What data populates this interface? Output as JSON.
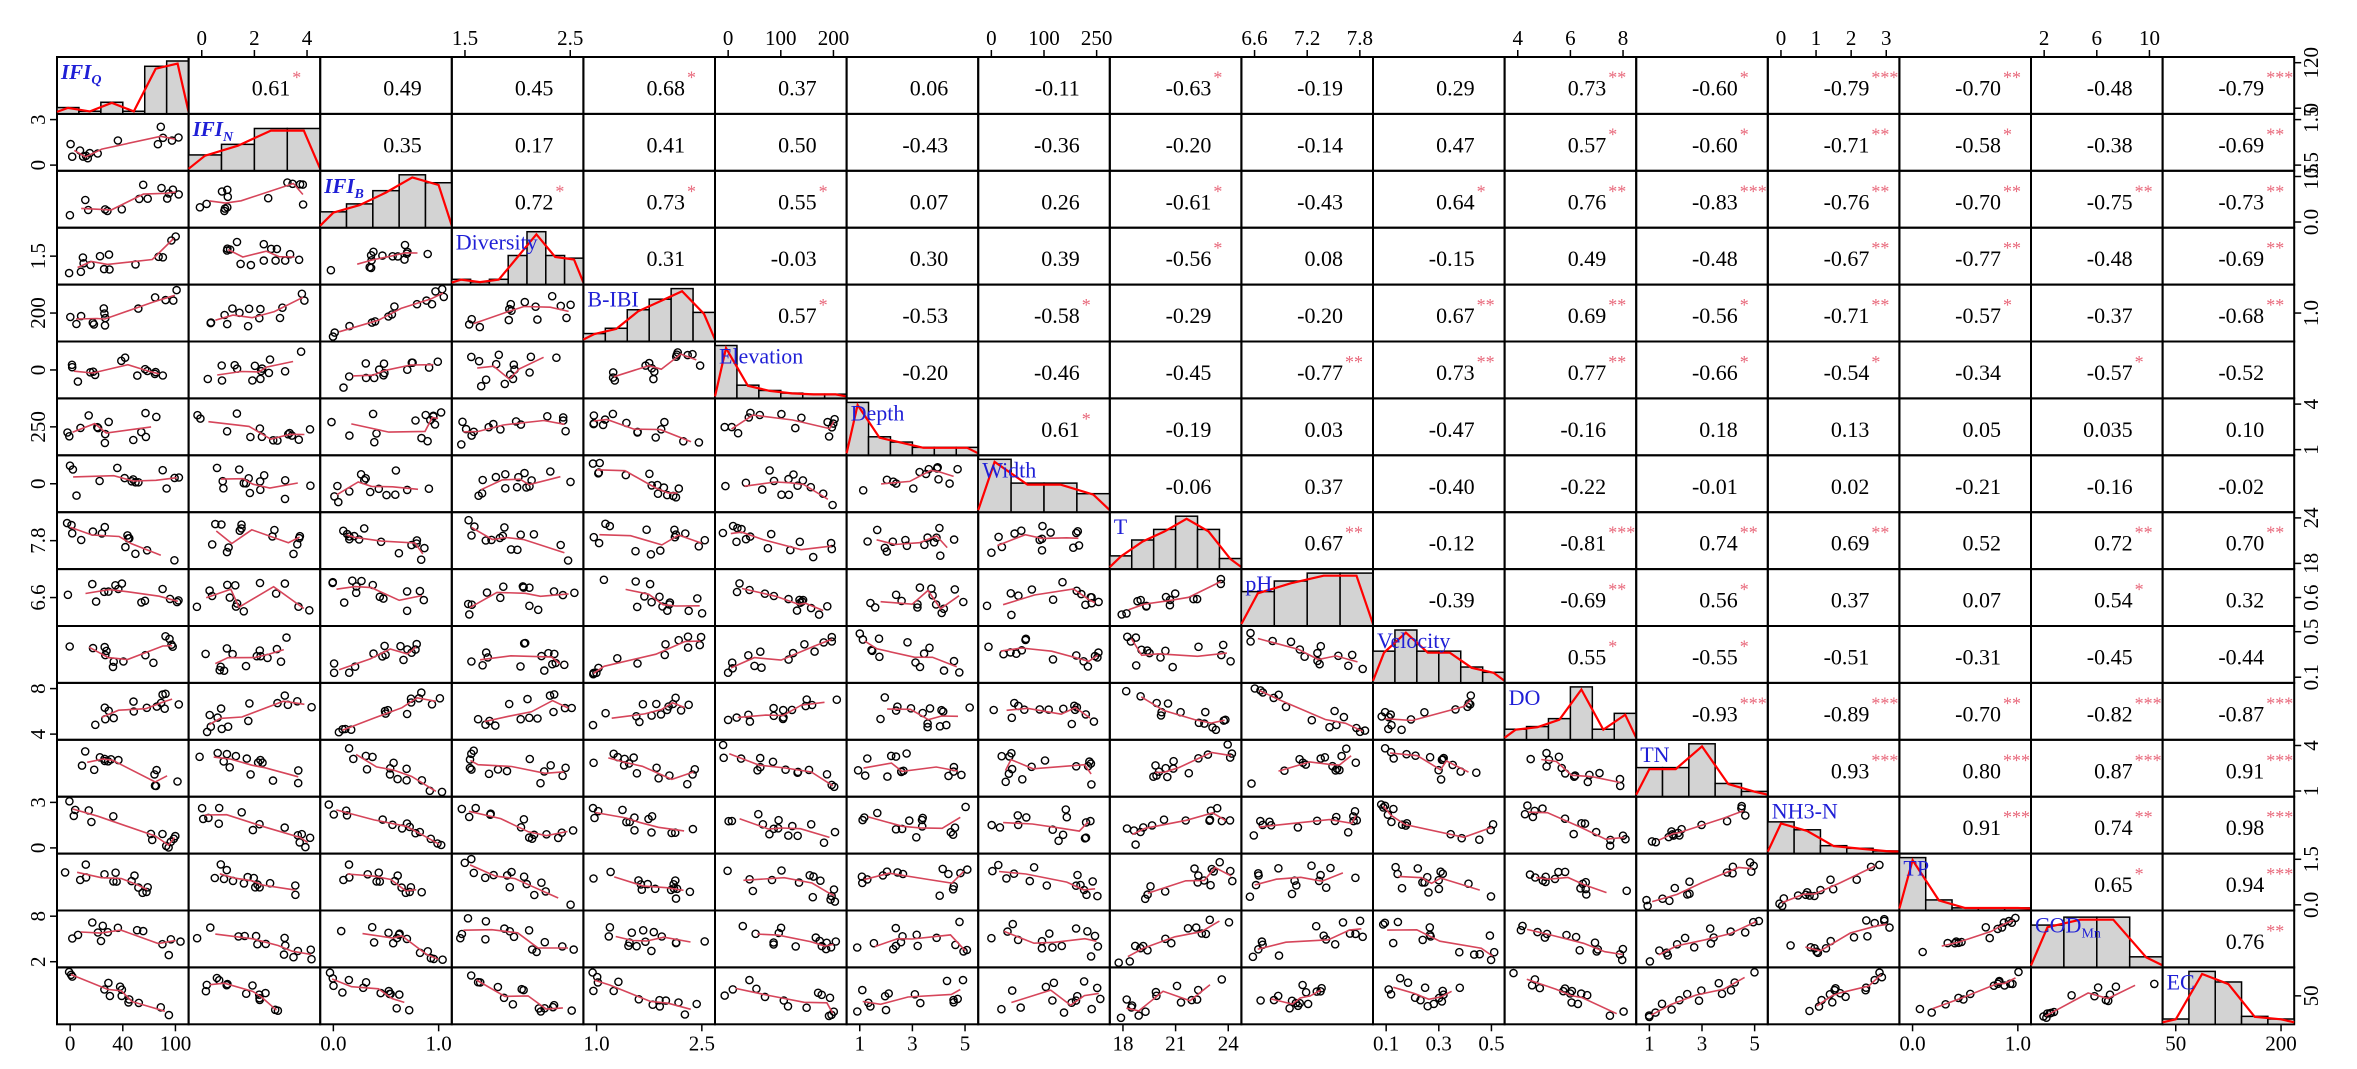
{
  "chart_data": {
    "type": "scatter",
    "variables": [
      "IFI_Q",
      "IFI_N",
      "IFI_B",
      "Diversity",
      "B-IBI",
      "Elevation",
      "Depth",
      "Width",
      "T",
      "pH",
      "Velocity",
      "DO",
      "TN",
      "NH3-N",
      "TP",
      "COD_Mn",
      "EC"
    ],
    "diagonal_labels": [
      {
        "main": "IFI",
        "sub": "Q",
        "italic": true
      },
      {
        "main": "IFI",
        "sub": "N",
        "italic": true
      },
      {
        "main": "IFI",
        "sub": "B",
        "italic": true
      },
      {
        "main": "Diversity",
        "sub": "",
        "italic": false
      },
      {
        "main": "B-IBI",
        "sub": "",
        "italic": false
      },
      {
        "main": "Elevation",
        "sub": "",
        "italic": false
      },
      {
        "main": "Depth",
        "sub": "",
        "italic": false
      },
      {
        "main": "Width",
        "sub": "",
        "italic": false
      },
      {
        "main": "T",
        "sub": "",
        "italic": false
      },
      {
        "main": "pH",
        "sub": "",
        "italic": false
      },
      {
        "main": "Velocity",
        "sub": "",
        "italic": false
      },
      {
        "main": "DO",
        "sub": "",
        "italic": false
      },
      {
        "main": "TN",
        "sub": "",
        "italic": false
      },
      {
        "main": "NH3-N",
        "sub": "",
        "italic": false
      },
      {
        "main": "TP",
        "sub": "",
        "italic": false
      },
      {
        "main": "COD",
        "sub": "Mn",
        "italic": false
      },
      {
        "main": "EC",
        "sub": "",
        "italic": false
      }
    ],
    "correlations": [
      [
        "0.61",
        "0.49",
        "0.45",
        "0.68",
        "0.37",
        "0.06",
        "-0.11",
        "-0.63",
        "-0.19",
        "0.29",
        "0.73",
        "-0.60",
        "-0.79",
        "-0.70",
        "-0.48",
        "-0.79"
      ],
      [
        "0.35",
        "0.17",
        "0.41",
        "0.50",
        "-0.43",
        "-0.36",
        "-0.20",
        "-0.14",
        "0.47",
        "0.57",
        "-0.60",
        "-0.71",
        "-0.58",
        "-0.38",
        "-0.69"
      ],
      [
        "0.72",
        "0.73",
        "0.55",
        "0.07",
        "0.26",
        "-0.61",
        "-0.43",
        "0.64",
        "0.76",
        "-0.83",
        "-0.76",
        "-0.70",
        "-0.75",
        "-0.73"
      ],
      [
        "0.31",
        "-0.03",
        "0.30",
        "0.39",
        "-0.56",
        "0.08",
        "-0.15",
        "0.49",
        "-0.48",
        "-0.67",
        "-0.77",
        "-0.48",
        "-0.69"
      ],
      [
        "0.57",
        "-0.53",
        "-0.58",
        "-0.29",
        "-0.20",
        "0.67",
        "0.69",
        "-0.56",
        "-0.71",
        "-0.57",
        "-0.37",
        "-0.68"
      ],
      [
        "-0.20",
        "-0.46",
        "-0.45",
        "-0.77",
        "0.73",
        "0.77",
        "-0.66",
        "-0.54",
        "-0.34",
        "-0.57",
        "-0.52"
      ],
      [
        "0.61",
        "-0.19",
        "0.03",
        "-0.47",
        "-0.16",
        "0.18",
        "0.13",
        "0.05",
        "0.035",
        "0.10"
      ],
      [
        "-0.06",
        "0.37",
        "-0.40",
        "-0.22",
        "-0.01",
        "0.02",
        "-0.21",
        "-0.16",
        "-0.02"
      ],
      [
        "0.67",
        "-0.12",
        "-0.81",
        "0.74",
        "0.69",
        "0.52",
        "0.72",
        "0.70"
      ],
      [
        "-0.39",
        "-0.69",
        "0.56",
        "0.37",
        "0.07",
        "0.54",
        "0.32"
      ],
      [
        "0.55",
        "-0.55",
        "-0.51",
        "-0.31",
        "-0.45",
        "-0.44"
      ],
      [
        "-0.93",
        "-0.89",
        "-0.70",
        "-0.82",
        "-0.87"
      ],
      [
        "0.93",
        "0.80",
        "0.87",
        "0.91"
      ],
      [
        "0.91",
        "0.74",
        "0.98"
      ],
      [
        "0.65",
        "0.94"
      ],
      [
        "0.76"
      ]
    ],
    "significance": [
      [
        "*",
        "",
        "",
        "*",
        "",
        "",
        "",
        "*",
        "",
        "",
        "**",
        "*",
        "***",
        "**",
        "",
        "***"
      ],
      [
        "",
        "",
        "",
        "",
        "",
        "",
        "",
        "",
        "",
        "*",
        "*",
        "**",
        "*",
        "",
        "**"
      ],
      [
        "*",
        "*",
        "*",
        "",
        "",
        "*",
        "",
        "*",
        "**",
        "***",
        "**",
        "**",
        "**",
        "**"
      ],
      [
        "",
        "",
        "",
        "",
        "*",
        "",
        "",
        "",
        "",
        "**",
        "**",
        "",
        "**"
      ],
      [
        "*",
        "",
        "*",
        "",
        "",
        "**",
        "**",
        "*",
        "**",
        "*",
        "",
        "**"
      ],
      [
        "",
        "",
        "",
        "**",
        "**",
        "**",
        "*",
        "*",
        "",
        "*",
        ""
      ],
      [
        "*",
        "",
        "",
        "",
        "",
        "",
        "",
        "",
        "",
        ""
      ],
      [
        "",
        "",
        "",
        "",
        "",
        "",
        "",
        "",
        ""
      ],
      [
        "**",
        "",
        "***",
        "**",
        "**",
        "",
        "**",
        "**"
      ],
      [
        "",
        "**",
        "*",
        "",
        "",
        "*",
        ""
      ],
      [
        "*",
        "*",
        "",
        "",
        "",
        ""
      ],
      [
        "***",
        "***",
        "**",
        "***",
        "***"
      ],
      [
        "***",
        "***",
        "***",
        "***"
      ],
      [
        "***",
        "**",
        "***"
      ],
      [
        "*",
        "***"
      ],
      [
        "**"
      ]
    ],
    "histograms": [
      [
        0.12,
        0.05,
        0.22,
        0.05,
        0.9,
        1.0
      ],
      [
        0.3,
        0.5,
        0.8,
        0.8
      ],
      [
        0.3,
        0.45,
        0.7,
        1.0,
        0.85
      ],
      [
        0.1,
        0.05,
        0.1,
        0.55,
        1.0,
        0.55,
        0.5
      ],
      [
        0.15,
        0.25,
        0.6,
        0.8,
        1.0,
        0.55
      ],
      [
        1.0,
        0.25,
        0.15,
        0.1,
        0.08,
        0.08
      ],
      [
        1.0,
        0.35,
        0.25,
        0.15,
        0.15,
        0.15
      ],
      [
        1.0,
        0.55,
        0.55,
        0.35
      ],
      [
        0.25,
        0.55,
        0.75,
        1.0,
        0.75,
        0.2
      ],
      [
        0.65,
        0.85,
        1.0,
        1.0
      ],
      [
        0.6,
        1.0,
        0.6,
        0.6,
        0.3,
        0.2
      ],
      [
        0.2,
        0.25,
        0.4,
        1.0,
        0.2,
        0.5
      ],
      [
        0.55,
        0.55,
        1.0,
        0.25,
        0.1
      ],
      [
        0.6,
        0.45,
        0.15,
        0.1,
        0.05
      ],
      [
        1.0,
        0.2,
        0.05,
        0.05,
        0.05
      ],
      [
        0.8,
        0.95,
        0.95,
        0.2
      ],
      [
        0.1,
        1.0,
        0.8,
        0.15,
        0.1
      ]
    ],
    "top_axis_ticks": [
      {
        "col": 1,
        "ticks": [
          "0",
          "2",
          "4"
        ]
      },
      {
        "col": 3,
        "ticks": [
          "1.5",
          "2.5"
        ]
      },
      {
        "col": 5,
        "ticks": [
          "0",
          "100",
          "200"
        ]
      },
      {
        "col": 7,
        "ticks": [
          "0",
          "100",
          "250"
        ]
      },
      {
        "col": 9,
        "ticks": [
          "6.6",
          "7.2",
          "7.8"
        ]
      },
      {
        "col": 11,
        "ticks": [
          "4",
          "6",
          "8"
        ]
      },
      {
        "col": 13,
        "ticks": [
          "0",
          "1",
          "2",
          "3"
        ]
      },
      {
        "col": 15,
        "ticks": [
          "2",
          "6",
          "10"
        ]
      }
    ],
    "bottom_axis_ticks": [
      {
        "col": 0,
        "ticks": [
          "0",
          "40",
          "100"
        ]
      },
      {
        "col": 2,
        "ticks": [
          "0.0",
          "1.0"
        ]
      },
      {
        "col": 4,
        "ticks": [
          "1.0",
          "2.5"
        ]
      },
      {
        "col": 6,
        "ticks": [
          "1",
          "3",
          "5"
        ]
      },
      {
        "col": 8,
        "ticks": [
          "18",
          "21",
          "24"
        ]
      },
      {
        "col": 10,
        "ticks": [
          "0.1",
          "0.3",
          "0.5"
        ]
      },
      {
        "col": 12,
        "ticks": [
          "1",
          "3",
          "5"
        ]
      },
      {
        "col": 14,
        "ticks": [
          "0.0",
          "1.0"
        ]
      },
      {
        "col": 16,
        "ticks": [
          "50",
          "200"
        ]
      }
    ],
    "left_axis_ticks": [
      {
        "row": 1,
        "ticks": [
          "0",
          "3"
        ]
      },
      {
        "row": 3,
        "ticks": [
          "1.5"
        ]
      },
      {
        "row": 4,
        "ticks": [
          "200"
        ]
      },
      {
        "row": 5,
        "ticks": [
          "0"
        ]
      },
      {
        "row": 6,
        "ticks": [
          "250"
        ]
      },
      {
        "row": 7,
        "ticks": [
          "0"
        ]
      },
      {
        "row": 8,
        "ticks": [
          "7.8"
        ]
      },
      {
        "row": 9,
        "ticks": [
          "6.6"
        ]
      },
      {
        "row": 11,
        "ticks": [
          "4",
          "8"
        ]
      },
      {
        "row": 13,
        "ticks": [
          "0",
          "3"
        ]
      },
      {
        "row": 15,
        "ticks": [
          "2",
          "8"
        ]
      }
    ],
    "right_axis_ticks": [
      {
        "row": 0,
        "ticks": [
          "0",
          "120"
        ]
      },
      {
        "row": 1,
        "ticks": [
          "0.5",
          "1.5"
        ]
      },
      {
        "row": 2,
        "ticks": [
          "0.0",
          "1.5"
        ]
      },
      {
        "row": 4,
        "ticks": [
          "1.0"
        ]
      },
      {
        "row": 6,
        "ticks": [
          "1",
          "4"
        ]
      },
      {
        "row": 8,
        "ticks": [
          "18",
          "24"
        ]
      },
      {
        "row": 9,
        "ticks": [
          "0.6"
        ]
      },
      {
        "row": 10,
        "ticks": [
          "0.1",
          "0.5"
        ]
      },
      {
        "row": 12,
        "ticks": [
          "1",
          "4"
        ]
      },
      {
        "row": 14,
        "ticks": [
          "0.0",
          "1.5"
        ]
      },
      {
        "row": 16,
        "ticks": [
          "50"
        ]
      }
    ]
  }
}
